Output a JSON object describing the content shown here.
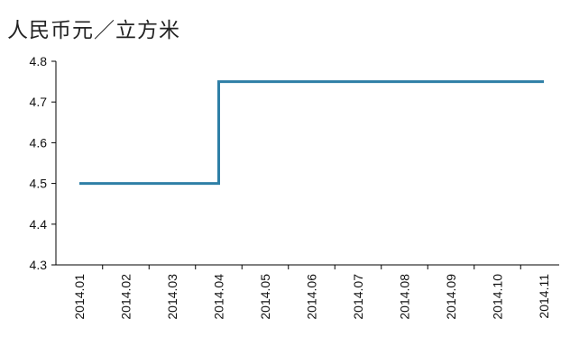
{
  "chart_data": {
    "type": "line",
    "style": "step",
    "unit_label": "人民币元／立方米",
    "categories": [
      "2014.01",
      "2014.02",
      "2014.03",
      "2014.04",
      "2014.05",
      "2014.06",
      "2014.07",
      "2014.08",
      "2014.09",
      "2014.10",
      "2014.11"
    ],
    "series": [
      {
        "values": [
          4.5,
          4.5,
          4.5,
          4.5,
          4.75,
          4.75,
          4.75,
          4.75,
          4.75,
          4.75,
          4.75
        ]
      }
    ],
    "ylim": [
      4.3,
      4.8
    ],
    "yticks": [
      "4.3",
      "4.4",
      "4.5",
      "4.6",
      "4.7",
      "4.8"
    ],
    "line_color": "#2e7fa6",
    "grid": false,
    "legend": "none"
  }
}
